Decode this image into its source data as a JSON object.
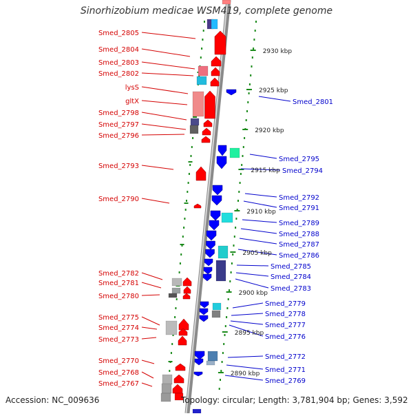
{
  "title": "Sinorhizobium medicae WSM419, complete genome",
  "footer": {
    "accession": "Accession: NC_009636",
    "summary": "Topology: circular; Length: 3,781,904 bp; Genes: 3,592"
  },
  "colors": {
    "left_label": "#d40000",
    "right_label": "#0000cc",
    "forward_gene": "#ff0000",
    "reverse_gene": "#0000ff",
    "tick": "#1a8a1a"
  },
  "kbp_ticks": [
    "2930 kbp",
    "2925 kbp",
    "2920 kbp",
    "2915 kbp",
    "2910 kbp",
    "2905 kbp",
    "2900 kbp",
    "2895 kbp",
    "2890 kbp"
  ],
  "left_labels": [
    "Smed_2805",
    "Smed_2804",
    "Smed_2803",
    "Smed_2802",
    "lysS",
    "gltX",
    "Smed_2798",
    "Smed_2797",
    "Smed_2796",
    "Smed_2793",
    "Smed_2790",
    "Smed_2782",
    "Smed_2781",
    "Smed_2780",
    "Smed_2775",
    "Smed_2774",
    "Smed_2773",
    "Smed_2770",
    "Smed_2768",
    "Smed_2767"
  ],
  "right_labels": [
    "Smed_2801",
    "Smed_2795",
    "Smed_2794",
    "Smed_2792",
    "Smed_2791",
    "Smed_2789",
    "Smed_2788",
    "Smed_2787",
    "Smed_2786",
    "Smed_2785",
    "Smed_2784",
    "Smed_2783",
    "Smed_2779",
    "Smed_2778",
    "Smed_2777",
    "Smed_2776",
    "Smed_2772",
    "Smed_2771",
    "Smed_2769"
  ]
}
